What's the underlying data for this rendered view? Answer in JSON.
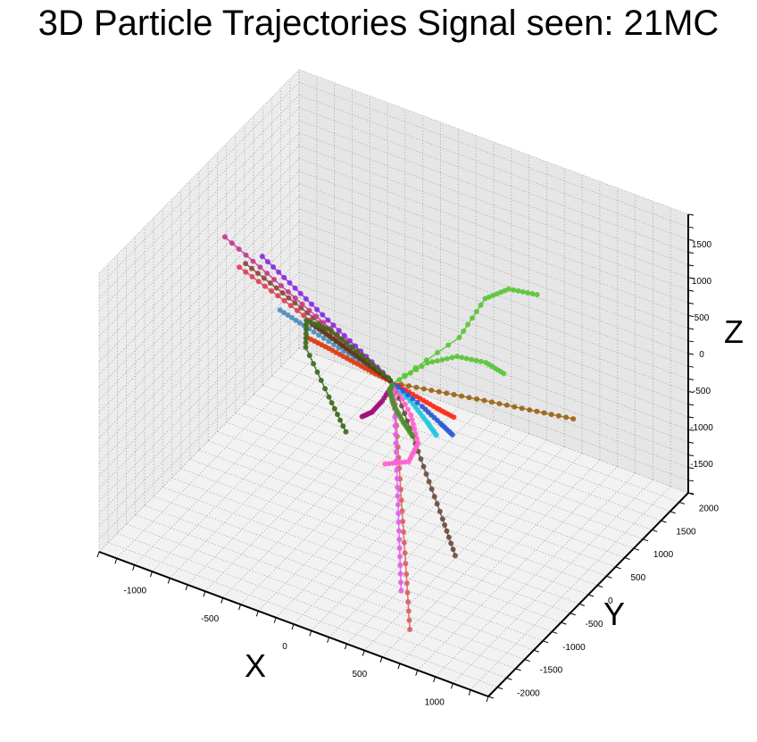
{
  "title": "3D Particle Trajectories Signal seen: 21MC",
  "chart_data": {
    "type": "scatter3d",
    "title": "3D Particle Trajectories Signal seen: 21MC",
    "xlabel": "X",
    "ylabel": "Y",
    "zlabel": "Z",
    "xlim": [
      -1300,
      1300
    ],
    "ylim": [
      -2200,
      2200
    ],
    "zlim": [
      -1900,
      1900
    ],
    "xticks": [
      "-1000",
      "-500",
      "0",
      "500",
      "1000"
    ],
    "yticks": [
      "-2000",
      "-1500",
      "-1000",
      "-500",
      "0",
      "500",
      "1000",
      "1500",
      "2000"
    ],
    "zticks": [
      "-1500",
      "-1000",
      "-500",
      "0",
      "500",
      "1000",
      "1500"
    ],
    "grid": true,
    "legend": "none",
    "series": [
      {
        "color": "#8b2be2",
        "points": [
          [
            0,
            0,
            0
          ],
          [
            -180,
            -130,
            380
          ],
          [
            -360,
            -260,
            750
          ],
          [
            -540,
            -390,
            1130
          ],
          [
            -720,
            -520,
            1510
          ]
        ]
      },
      {
        "color": "#8b4a3c",
        "points": [
          [
            0,
            0,
            0
          ],
          [
            -220,
            -90,
            300
          ],
          [
            -440,
            -180,
            600
          ],
          [
            -660,
            -270,
            900
          ],
          [
            -880,
            -360,
            1190
          ]
        ]
      },
      {
        "color": "#c23b8c",
        "points": [
          [
            0,
            0,
            0
          ],
          [
            -300,
            60,
            230
          ],
          [
            -600,
            120,
            460
          ],
          [
            -900,
            180,
            700
          ],
          [
            -1200,
            240,
            930
          ]
        ]
      },
      {
        "color": "#d9415a",
        "points": [
          [
            0,
            0,
            0
          ],
          [
            -270,
            40,
            160
          ],
          [
            -540,
            80,
            330
          ],
          [
            -810,
            120,
            500
          ],
          [
            -1080,
            160,
            660
          ]
        ]
      },
      {
        "color": "#4f8fc0",
        "points": [
          [
            0,
            0,
            0
          ],
          [
            -200,
            0,
            110
          ],
          [
            -400,
            0,
            220
          ],
          [
            -600,
            0,
            330
          ],
          [
            -760,
            0,
            420
          ]
        ]
      },
      {
        "color": "#e03a10",
        "points": [
          [
            0,
            0,
            0
          ],
          [
            -120,
            -80,
            110
          ],
          [
            -240,
            -160,
            230
          ],
          [
            -360,
            -240,
            350
          ],
          [
            -480,
            -320,
            460
          ]
        ]
      },
      {
        "color": "#5c3a1e",
        "points": [
          [
            0,
            0,
            0
          ],
          [
            -160,
            80,
            30
          ],
          [
            -320,
            160,
            60
          ],
          [
            -480,
            240,
            90
          ],
          [
            -640,
            320,
            110
          ]
        ]
      },
      {
        "color": "#3f6b1e",
        "points": [
          [
            0,
            0,
            0
          ],
          [
            -300,
            300,
            -40
          ],
          [
            -600,
            600,
            -120
          ],
          [
            -820,
            780,
            -260
          ],
          [
            -800,
            700,
            -560
          ],
          [
            -560,
            420,
            -880
          ],
          [
            -380,
            200,
            -1080
          ]
        ]
      },
      {
        "color": "#5cc43a",
        "points": [
          [
            0,
            0,
            0
          ],
          [
            250,
            620,
            420
          ],
          [
            380,
            760,
            960
          ],
          [
            520,
            820,
            1160
          ],
          [
            700,
            850,
            1200
          ]
        ]
      },
      {
        "color": "#5cc43a",
        "points": [
          [
            0,
            0,
            0
          ],
          [
            150,
            250,
            230
          ],
          [
            320,
            340,
            390
          ],
          [
            500,
            380,
            420
          ],
          [
            620,
            380,
            360
          ]
        ]
      },
      {
        "color": "#9a6514",
        "points": [
          [
            0,
            0,
            0
          ],
          [
            260,
            140,
            -10
          ],
          [
            520,
            280,
            -20
          ],
          [
            780,
            420,
            -40
          ],
          [
            1030,
            560,
            -60
          ]
        ]
      },
      {
        "color": "#6a4f3e",
        "points": [
          [
            0,
            0,
            0
          ],
          [
            200,
            -300,
            -280
          ],
          [
            400,
            -600,
            -560
          ],
          [
            600,
            -900,
            -830
          ],
          [
            760,
            -1150,
            -1050
          ]
        ]
      },
      {
        "color": "#d96060",
        "points": [
          [
            0,
            0,
            0
          ],
          [
            180,
            -500,
            -420
          ],
          [
            360,
            -1000,
            -840
          ],
          [
            540,
            -1500,
            -1250
          ],
          [
            700,
            -1950,
            -1600
          ]
        ]
      },
      {
        "color": "#e060e6",
        "points": [
          [
            0,
            0,
            0
          ],
          [
            140,
            -420,
            -330
          ],
          [
            280,
            -840,
            -680
          ],
          [
            420,
            -1260,
            -1020
          ],
          [
            560,
            -1680,
            -1350
          ]
        ]
      },
      {
        "color": "#ff60d0",
        "points": [
          [
            0,
            0,
            0
          ],
          [
            160,
            -150,
            -220
          ],
          [
            260,
            -320,
            -420
          ],
          [
            240,
            -460,
            -600
          ],
          [
            100,
            -520,
            -700
          ]
        ]
      },
      {
        "color": "#a0127a",
        "points": [
          [
            0,
            0,
            0
          ],
          [
            -40,
            -120,
            -200
          ],
          [
            -80,
            -220,
            -320
          ],
          [
            -120,
            -300,
            -360
          ]
        ]
      },
      {
        "color": "#4b8f2a",
        "points": [
          [
            0,
            0,
            0
          ],
          [
            -40,
            40,
            -160
          ],
          [
            0,
            0,
            -300
          ],
          [
            100,
            -120,
            -380
          ],
          [
            200,
            -240,
            -420
          ]
        ]
      },
      {
        "color": "#24c8e0",
        "points": [
          [
            0,
            0,
            0
          ],
          [
            150,
            -60,
            -140
          ],
          [
            260,
            -120,
            -260
          ],
          [
            340,
            -180,
            -340
          ]
        ]
      },
      {
        "color": "#ff2a1a",
        "points": [
          [
            0,
            0,
            0
          ],
          [
            160,
            -20,
            -50
          ],
          [
            300,
            -40,
            -90
          ],
          [
            420,
            -60,
            -110
          ]
        ]
      },
      {
        "color": "#2b5bd6",
        "points": [
          [
            0,
            0,
            0
          ],
          [
            200,
            -30,
            -150
          ],
          [
            330,
            -60,
            -260
          ],
          [
            420,
            -90,
            -330
          ]
        ]
      }
    ]
  }
}
